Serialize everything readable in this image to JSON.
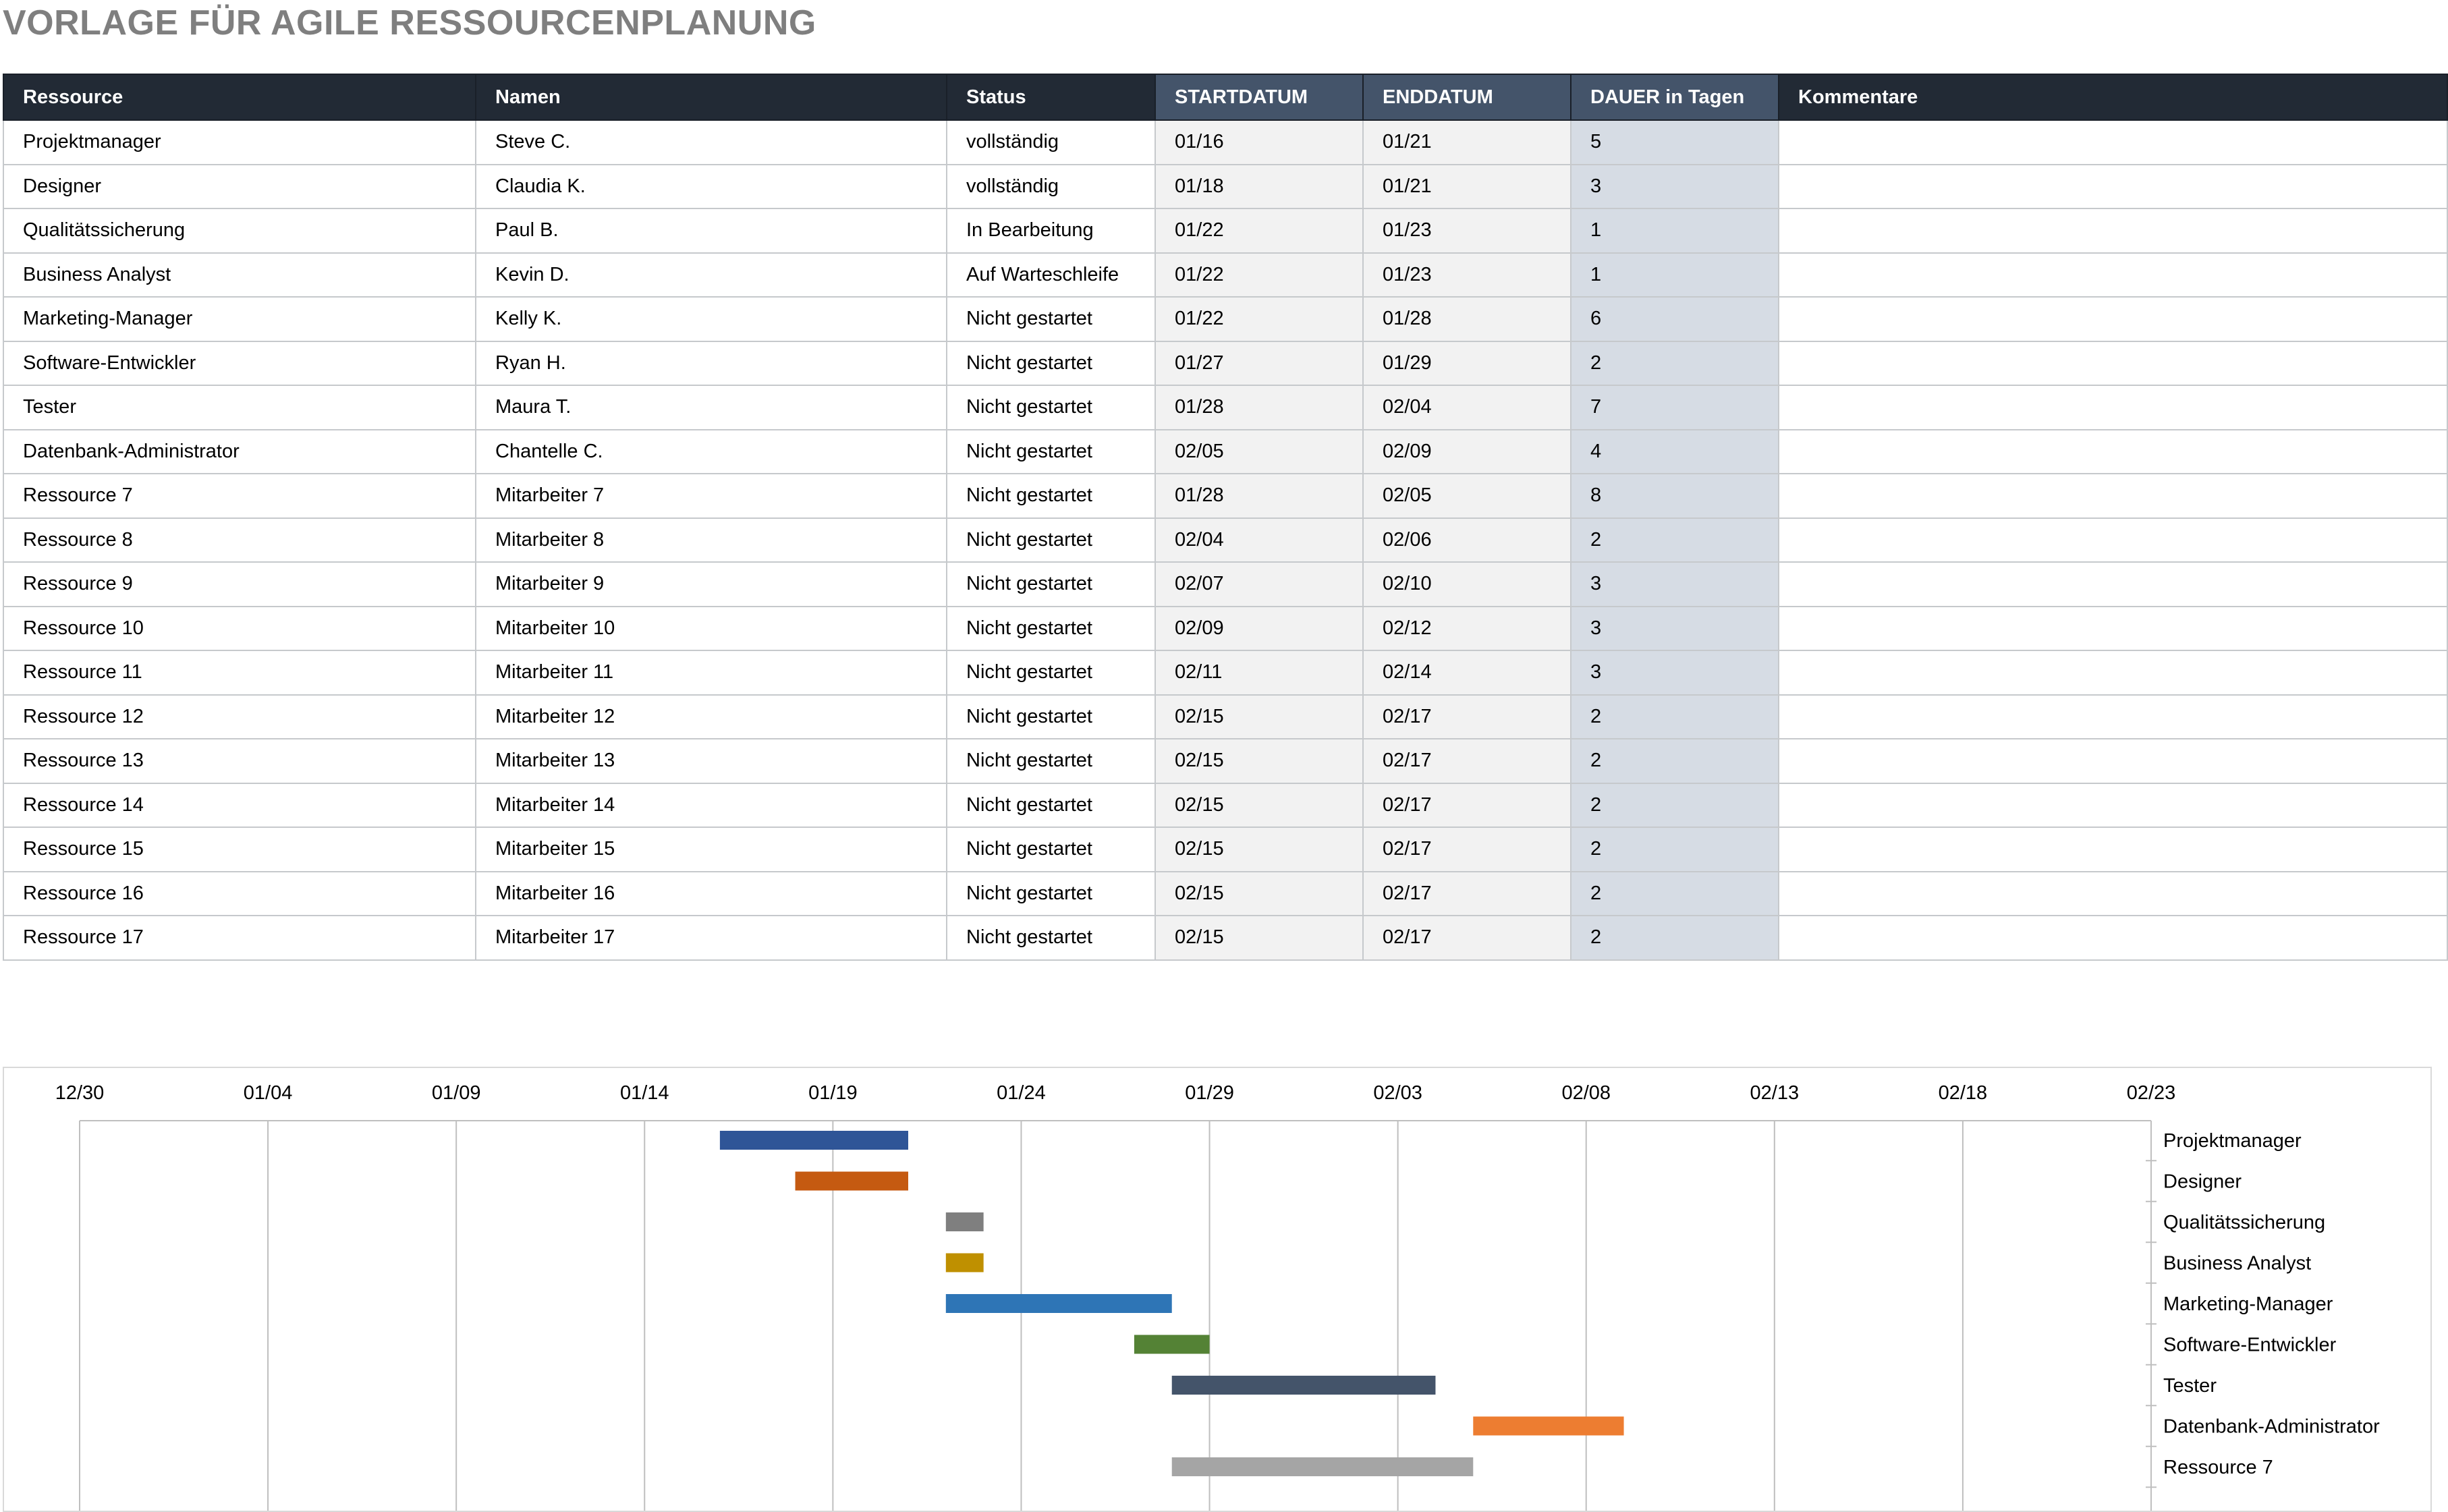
{
  "title": "VORLAGE FÜR AGILE RESSOURCENPLANUNG",
  "table": {
    "headers": [
      "Ressource",
      "Namen",
      "Status",
      "STARTDATUM",
      "ENDDATUM",
      "DAUER  in Tagen",
      "Kommentare"
    ],
    "rows": [
      [
        "Projektmanager",
        "Steve C.",
        "vollständig",
        "01/16",
        "01/21",
        "5",
        ""
      ],
      [
        "Designer",
        "Claudia K.",
        "vollständig",
        "01/18",
        "01/21",
        "3",
        ""
      ],
      [
        "Qualitätssicherung",
        "Paul B.",
        "In Bearbeitung",
        "01/22",
        "01/23",
        "1",
        ""
      ],
      [
        "Business Analyst",
        "Kevin D.",
        "Auf Warteschleife",
        "01/22",
        "01/23",
        "1",
        ""
      ],
      [
        "Marketing-Manager",
        "Kelly K.",
        "Nicht gestartet",
        "01/22",
        "01/28",
        "6",
        ""
      ],
      [
        "Software-Entwickler",
        "Ryan H.",
        "Nicht gestartet",
        "01/27",
        "01/29",
        "2",
        ""
      ],
      [
        "Tester",
        "Maura T.",
        "Nicht gestartet",
        "01/28",
        "02/04",
        "7",
        ""
      ],
      [
        "Datenbank-Administrator",
        "Chantelle C.",
        "Nicht gestartet",
        "02/05",
        "02/09",
        "4",
        ""
      ],
      [
        "Ressource 7",
        "Mitarbeiter 7",
        "Nicht gestartet",
        "01/28",
        "02/05",
        "8",
        ""
      ],
      [
        "Ressource 8",
        "Mitarbeiter 8",
        "Nicht gestartet",
        "02/04",
        "02/06",
        "2",
        ""
      ],
      [
        "Ressource 9",
        "Mitarbeiter 9",
        "Nicht gestartet",
        "02/07",
        "02/10",
        "3",
        ""
      ],
      [
        "Ressource 10",
        "Mitarbeiter 10",
        "Nicht gestartet",
        "02/09",
        "02/12",
        "3",
        ""
      ],
      [
        "Ressource 11",
        "Mitarbeiter 11",
        "Nicht gestartet",
        "02/11",
        "02/14",
        "3",
        ""
      ],
      [
        "Ressource 12",
        "Mitarbeiter 12",
        "Nicht gestartet",
        "02/15",
        "02/17",
        "2",
        ""
      ],
      [
        "Ressource 13",
        "Mitarbeiter 13",
        "Nicht gestartet",
        "02/15",
        "02/17",
        "2",
        ""
      ],
      [
        "Ressource 14",
        "Mitarbeiter 14",
        "Nicht gestartet",
        "02/15",
        "02/17",
        "2",
        ""
      ],
      [
        "Ressource 15",
        "Mitarbeiter 15",
        "Nicht gestartet",
        "02/15",
        "02/17",
        "2",
        ""
      ],
      [
        "Ressource 16",
        "Mitarbeiter 16",
        "Nicht gestartet",
        "02/15",
        "02/17",
        "2",
        ""
      ],
      [
        "Ressource 17",
        "Mitarbeiter 17",
        "Nicht gestartet",
        "02/15",
        "02/17",
        "2",
        ""
      ]
    ]
  },
  "colors": {
    "header_dark": "#222a35",
    "header_date": "#44546a",
    "date_cell": "#f2f2f2",
    "duration_cell": "#d6dce4",
    "title": "#7f7f7f"
  },
  "chart_data": {
    "type": "bar",
    "orientation": "horizontal-gantt",
    "x_ticks": [
      "12/30",
      "01/04",
      "01/09",
      "01/14",
      "01/19",
      "01/24",
      "01/29",
      "02/03",
      "02/08",
      "02/13",
      "02/18",
      "02/23"
    ],
    "xlim": [
      "12/30",
      "02/23"
    ],
    "x_axis_position": "top",
    "y_axis_position": "right",
    "grid": true,
    "series": [
      {
        "label": "Projektmanager",
        "start": "01/16",
        "end": "01/21",
        "color": "#2f5597"
      },
      {
        "label": "Designer",
        "start": "01/18",
        "end": "01/21",
        "color": "#c55a11"
      },
      {
        "label": "Qualitätssicherung",
        "start": "01/22",
        "end": "01/23",
        "color": "#7f7f7f"
      },
      {
        "label": "Business Analyst",
        "start": "01/22",
        "end": "01/23",
        "color": "#bf9000"
      },
      {
        "label": "Marketing-Manager",
        "start": "01/22",
        "end": "01/28",
        "color": "#2e75b6"
      },
      {
        "label": "Software-Entwickler",
        "start": "01/27",
        "end": "01/29",
        "color": "#548235"
      },
      {
        "label": "Tester",
        "start": "01/28",
        "end": "02/04",
        "color": "#44546a"
      },
      {
        "label": "Datenbank-Administrator",
        "start": "02/05",
        "end": "02/09",
        "color": "#ed7d31"
      },
      {
        "label": "Ressource 7",
        "start": "01/28",
        "end": "02/05",
        "color": "#a5a5a5"
      }
    ]
  }
}
